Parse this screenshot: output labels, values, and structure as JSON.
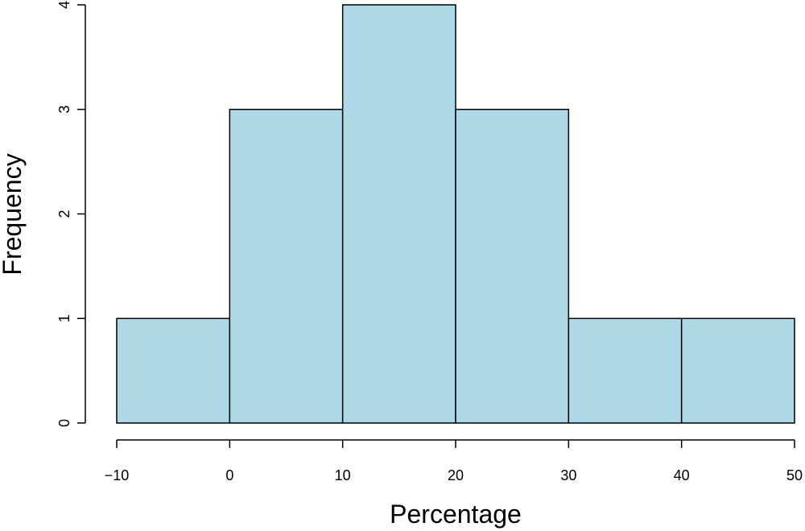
{
  "chart_data": {
    "type": "bar",
    "subtype": "histogram",
    "bins": [
      {
        "from": -10,
        "to": 0,
        "count": 1
      },
      {
        "from": 0,
        "to": 10,
        "count": 3
      },
      {
        "from": 10,
        "to": 20,
        "count": 4
      },
      {
        "from": 20,
        "to": 30,
        "count": 3
      },
      {
        "from": 30,
        "to": 40,
        "count": 1
      },
      {
        "from": 40,
        "to": 50,
        "count": 1
      }
    ],
    "xlabel": "Percentage",
    "ylabel": "Frequency",
    "xlim": [
      -10,
      50
    ],
    "ylim": [
      0,
      4
    ],
    "xticks": [
      -10,
      0,
      10,
      20,
      30,
      40,
      50
    ],
    "xtick_labels": [
      "−10",
      "0",
      "10",
      "20",
      "30",
      "40",
      "50"
    ],
    "yticks": [
      0,
      1,
      2,
      3,
      4
    ],
    "ytick_labels": [
      "0",
      "1",
      "2",
      "3",
      "4"
    ],
    "bar_color": "#add8e6",
    "grid": false,
    "legend": "none"
  }
}
